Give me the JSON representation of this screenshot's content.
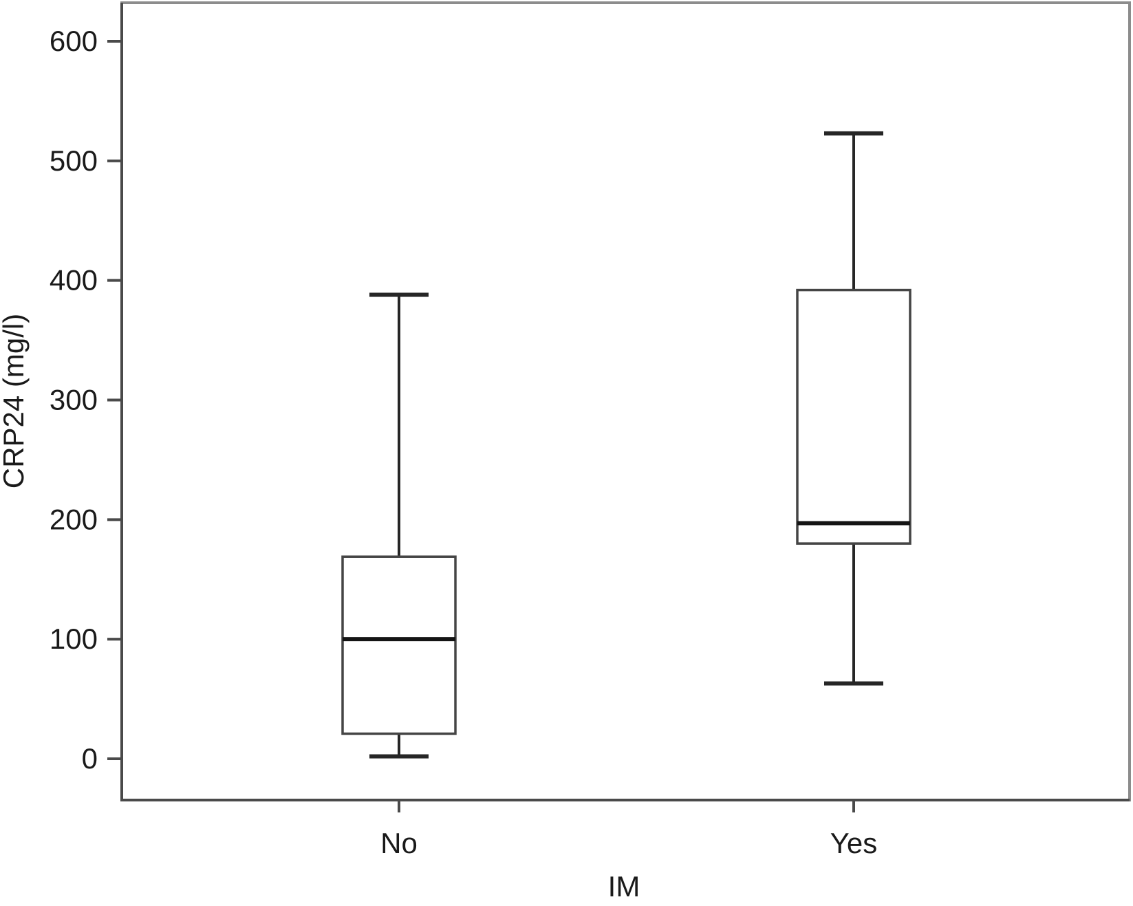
{
  "chart_data": {
    "type": "boxplot",
    "title": "",
    "xlabel": "IM",
    "ylabel": "CRP24 (mg/l)",
    "categories": [
      "No",
      "Yes"
    ],
    "yticks": [
      0,
      100,
      200,
      300,
      400,
      500,
      600
    ],
    "ylim": [
      -35,
      632
    ],
    "grid": false,
    "legend": "none",
    "boxes": [
      {
        "category": "No",
        "whisker_low": 2,
        "q1": 21,
        "median": 100,
        "q3": 169,
        "whisker_high": 388,
        "outliers": []
      },
      {
        "category": "Yes",
        "whisker_low": 63,
        "q1": 180,
        "median": 197,
        "q3": 392,
        "whisker_high": 523,
        "outliers": []
      }
    ],
    "colors": {
      "background": "#ffffff",
      "box_fill": "#ffffff",
      "box_stroke": "#454545",
      "median_stroke": "#141414",
      "whisker_stroke": "#262626",
      "axis_stroke": "#4a4a4a",
      "border_stroke": "#8c8c8c",
      "text": "#1a1a1a"
    }
  }
}
